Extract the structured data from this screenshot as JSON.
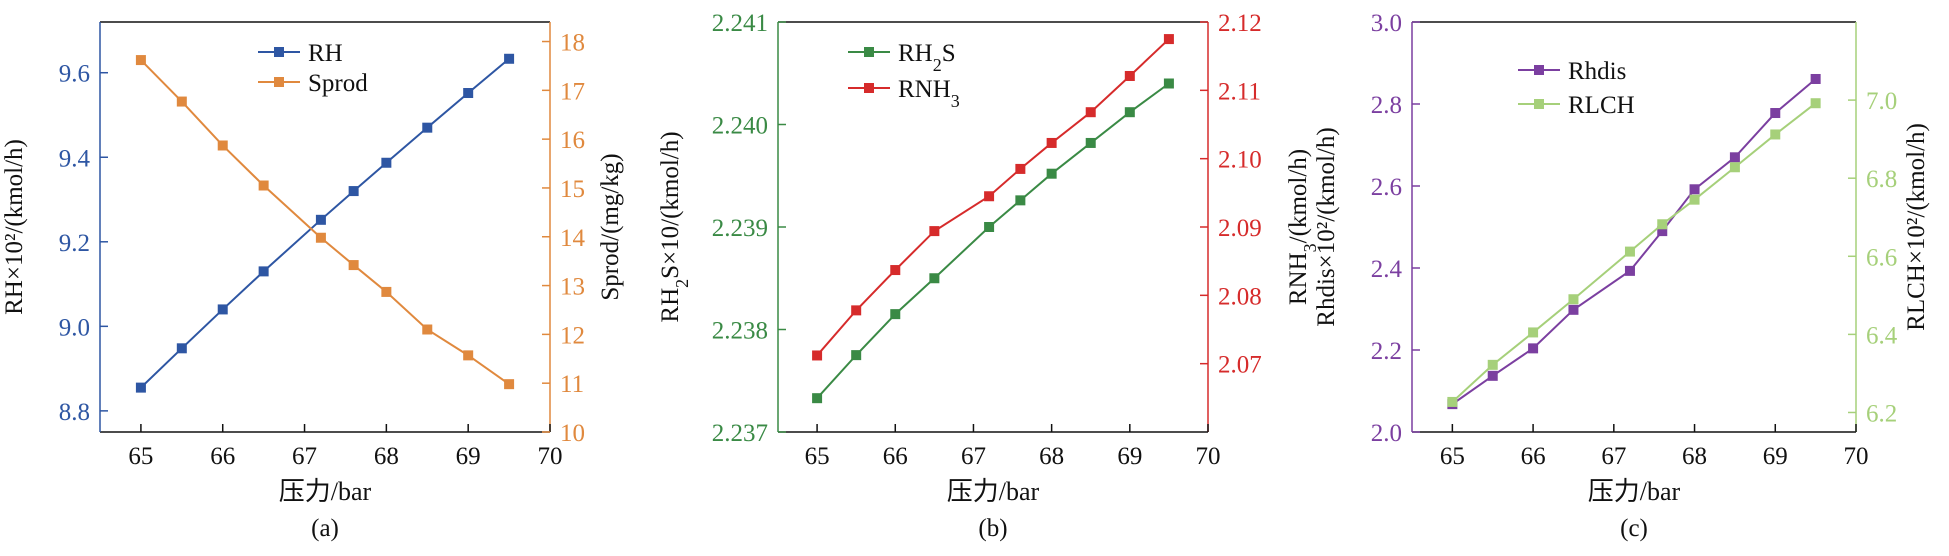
{
  "chart_data": [
    {
      "type": "line",
      "panel_label": "(a)",
      "x": [
        65,
        65.5,
        66,
        66.5,
        67.2,
        67.6,
        68,
        68.5,
        69,
        69.5
      ],
      "xlim": [
        64.5,
        70
      ],
      "xticks": [
        "65",
        "66",
        "67",
        "68",
        "69",
        "70"
      ],
      "xlabel": "压力/bar",
      "ylabel_left": "RH×10²/(kmol/h)",
      "ylim_left": [
        8.75,
        9.72
      ],
      "yticks_left": [
        "8.8",
        "9.0",
        "9.2",
        "9.4",
        "9.6"
      ],
      "ylabel_right": "Sprod/(mg/kg)",
      "ylim_right": [
        10,
        18.4
      ],
      "yticks_right": [
        "10",
        "11",
        "12",
        "13",
        "14",
        "15",
        "16",
        "17",
        "18"
      ],
      "left_axis_color": "#2e56a3",
      "right_axis_color": "#e0893e",
      "legend_position": "top-center",
      "series": [
        {
          "name": "RH",
          "axis": "left",
          "color": "#2e56a3",
          "marker": "square",
          "values": [
            8.855,
            8.948,
            9.04,
            9.13,
            9.252,
            9.32,
            9.387,
            9.47,
            9.552,
            9.633
          ]
        },
        {
          "name": "Sprod",
          "axis": "right",
          "color": "#e0893e",
          "marker": "square",
          "values": [
            17.62,
            16.77,
            15.87,
            15.05,
            13.98,
            13.42,
            12.87,
            12.1,
            11.57,
            10.98
          ]
        }
      ]
    },
    {
      "type": "line",
      "panel_label": "(b)",
      "x": [
        65,
        65.5,
        66,
        66.5,
        67.2,
        67.6,
        68,
        68.5,
        69,
        69.5
      ],
      "xlim": [
        64.5,
        70
      ],
      "xticks": [
        "65",
        "66",
        "67",
        "68",
        "69",
        "70"
      ],
      "xlabel": "压力/bar",
      "ylabel_left": "RH2S×10/(kmol/h)",
      "ylim_left": [
        2.237,
        2.241
      ],
      "yticks_left": [
        "2.237",
        "2.238",
        "2.239",
        "2.240",
        "2.241"
      ],
      "ylabel_right": "RNH3/(kmol/h)",
      "ylim_right": [
        2.06,
        2.12
      ],
      "yticks_right": [
        "2.07",
        "2.08",
        "2.09",
        "2.10",
        "2.11",
        "2.12"
      ],
      "left_axis_color": "#3a8a45",
      "right_axis_color": "#d62b2b",
      "legend_position": "top-left",
      "series": [
        {
          "name": "RH2S",
          "axis": "left",
          "color": "#3a8a45",
          "marker": "square",
          "values": [
            2.23733,
            2.23775,
            2.23815,
            2.2385,
            2.239,
            2.23926,
            2.23952,
            2.23982,
            2.24012,
            2.2404
          ]
        },
        {
          "name": "RNH3",
          "axis": "right",
          "color": "#d62b2b",
          "marker": "square",
          "values": [
            2.0712,
            2.0778,
            2.0837,
            2.0894,
            2.0945,
            2.0985,
            2.1023,
            2.1068,
            2.1121,
            2.1175
          ]
        }
      ]
    },
    {
      "type": "line",
      "panel_label": "(c)",
      "x": [
        65,
        65.5,
        66,
        66.5,
        67.2,
        67.6,
        68,
        68.5,
        69,
        69.5
      ],
      "xlim": [
        64.5,
        70
      ],
      "xticks": [
        "65",
        "66",
        "67",
        "68",
        "69",
        "70"
      ],
      "xlabel": "压力/bar",
      "ylabel_left": "Rhdis×10²/(kmol/h)",
      "ylim_left": [
        2.0,
        3.0
      ],
      "yticks_left": [
        "2.0",
        "2.2",
        "2.4",
        "2.6",
        "2.8",
        "3.0"
      ],
      "ylabel_right": "RLCH×10²/(kmol/h)",
      "ylim_right": [
        6.15,
        7.2
      ],
      "yticks_right": [
        "6.2",
        "6.4",
        "6.6",
        "6.8",
        "7.0"
      ],
      "left_axis_color": "#7b3fa0",
      "right_axis_color": "#a6d07a",
      "legend_position": "top-center",
      "series": [
        {
          "name": "Rhdis",
          "axis": "left",
          "color": "#7b3fa0",
          "marker": "square",
          "values": [
            2.068,
            2.137,
            2.204,
            2.298,
            2.393,
            2.49,
            2.592,
            2.67,
            2.778,
            2.861
          ]
        },
        {
          "name": "RLCH",
          "axis": "right",
          "color": "#a6d07a",
          "marker": "square",
          "values": [
            6.227,
            6.322,
            6.405,
            6.49,
            6.612,
            6.682,
            6.745,
            6.828,
            6.912,
            6.992
          ]
        }
      ]
    }
  ]
}
